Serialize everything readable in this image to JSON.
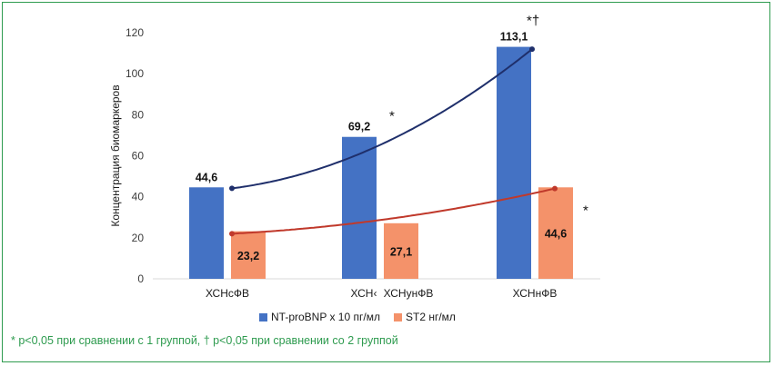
{
  "chart_data": {
    "type": "bar",
    "categories": [
      "ХСНсФВ",
      "ХСНпФВ",
      "ХСНнФВ"
    ],
    "category_labels_shown": [
      "ХСНсФВ",
      "ХСН‹",
      "ХСНнФВ"
    ],
    "overlap_label": "ХСНунФВ",
    "ylabel": "Концентрация биомаркеров",
    "ylim": [
      0,
      120
    ],
    "yticks": [
      0,
      20,
      40,
      60,
      80,
      100,
      120
    ],
    "grid": false,
    "legend_position": "bottom",
    "series": [
      {
        "name": "NT-proBNP x 10 пг/мл",
        "values": [
          44.6,
          69.2,
          113.1
        ],
        "labels": [
          "44,6",
          "69,2",
          "113,1"
        ],
        "color": "#4472c4",
        "trend_color": "#1f2f6b",
        "marks": [
          "",
          "*",
          "*†"
        ]
      },
      {
        "name": "ST2 нг/мл",
        "values": [
          23.2,
          27.1,
          44.6
        ],
        "labels": [
          "23,2",
          "27,1",
          "44,6"
        ],
        "color": "#f4926a",
        "trend_color": "#c0392b",
        "marks": [
          "",
          "",
          "*"
        ]
      }
    ]
  },
  "footnote": "* p<0,05 при сравнении с 1 группой, † p<0,05 при сравнении со 2 группой"
}
